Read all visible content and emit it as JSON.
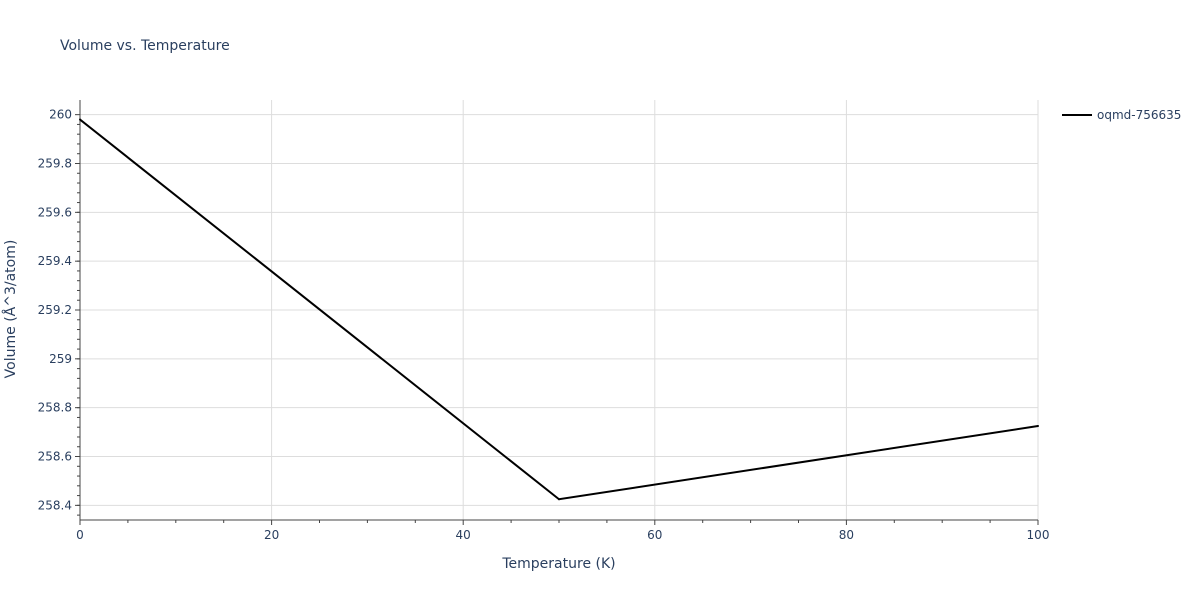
{
  "chart_data": {
    "type": "line",
    "title": "Volume vs. Temperature",
    "xlabel": "Temperature (K)",
    "ylabel": "Volume (Å^3/atom)",
    "xlim": [
      0,
      100
    ],
    "ylim": [
      258.34,
      260.06
    ],
    "xticks": [
      0,
      20,
      40,
      60,
      80,
      100
    ],
    "xtick_labels": [
      "0",
      "20",
      "40",
      "60",
      "80",
      "100"
    ],
    "yticks": [
      258.4,
      258.6,
      258.8,
      259,
      259.2,
      259.4,
      259.6,
      259.8,
      260
    ],
    "ytick_labels": [
      "258.4",
      "258.6",
      "258.8",
      "259",
      "259.2",
      "259.4",
      "259.6",
      "259.8",
      "260"
    ],
    "grid": true,
    "legend_position": "top-right",
    "series": [
      {
        "name": "oqmd-756635",
        "color": "#000000",
        "x": [
          0,
          50,
          100
        ],
        "y": [
          259.98,
          258.425,
          258.725
        ]
      }
    ]
  }
}
